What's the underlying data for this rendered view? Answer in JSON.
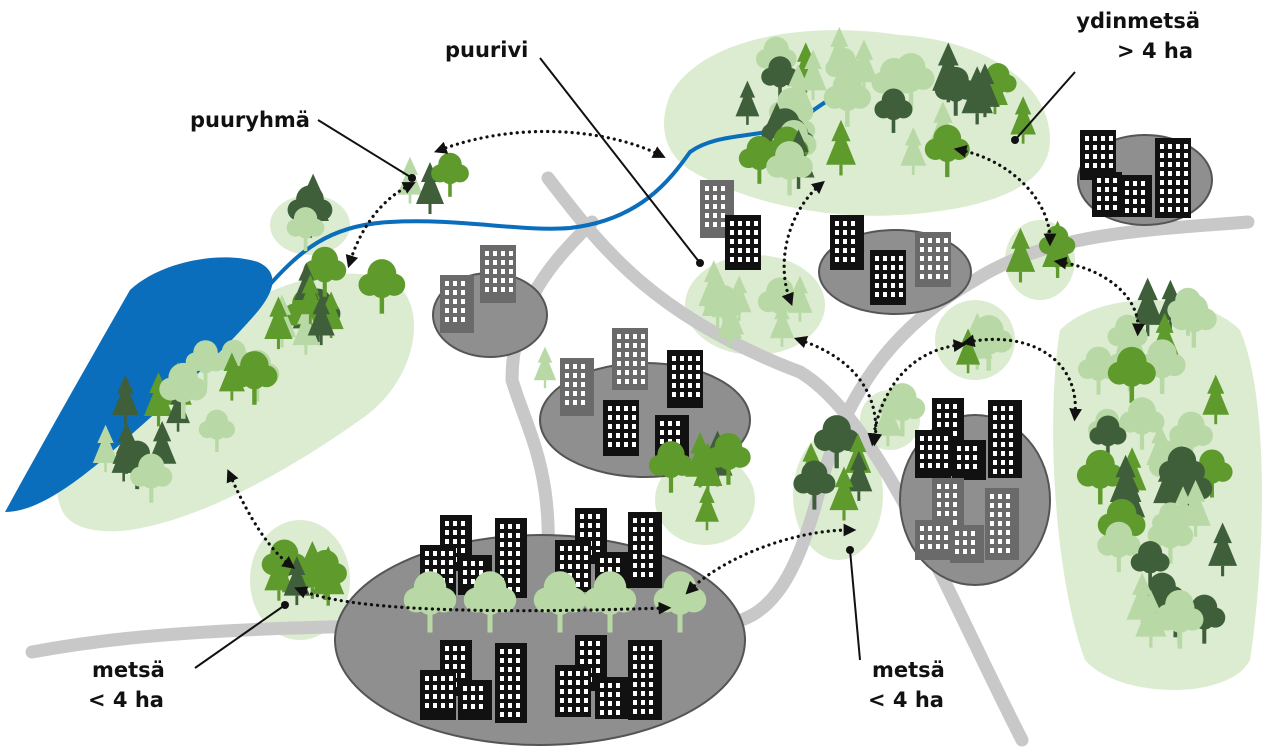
{
  "labels": [
    {
      "lines": [
        "puurivi"
      ]
    },
    {
      "lines": [
        "ydinmetsä",
        "> 4 ha"
      ]
    },
    {
      "lines": [
        "puuryhmä"
      ]
    },
    {
      "lines": [
        "metsä",
        "< 4 ha"
      ]
    },
    {
      "lines": [
        "metsä",
        "< 4 ha"
      ]
    }
  ]
}
